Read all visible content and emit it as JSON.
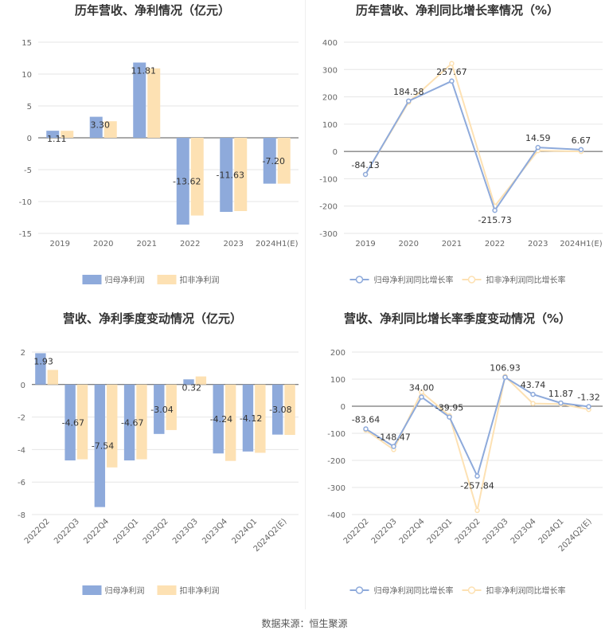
{
  "source_text": "数据来源：恒生聚源",
  "colors": {
    "series1": "#8eaadb",
    "series2": "#fde1b3",
    "line1": "#8eaadb",
    "line2": "#fde1b3"
  },
  "chart_data": [
    {
      "id": "c1",
      "type": "bar",
      "title": "历年营收、净利情况（亿元）",
      "categories": [
        "2019",
        "2020",
        "2021",
        "2022",
        "2023",
        "2024H1(E)"
      ],
      "series": [
        {
          "name": "归母净利润",
          "values": [
            1.11,
            3.3,
            11.81,
            -13.62,
            -11.63,
            -7.2
          ]
        },
        {
          "name": "扣非净利润",
          "values": [
            1.1,
            2.6,
            10.9,
            -12.2,
            -11.5,
            -7.2
          ]
        }
      ],
      "data_labels": [
        "1.11",
        "3.30",
        "11.81",
        "-13.62",
        "-11.63",
        "-7.20"
      ],
      "yticks": [
        15,
        10,
        5,
        0,
        -5,
        -10,
        -15
      ],
      "ylim": [
        -15,
        15
      ],
      "legend": "bottom"
    },
    {
      "id": "c2",
      "type": "line",
      "title": "历年营收、净利同比增长率情况（%）",
      "categories": [
        "2019",
        "2020",
        "2021",
        "2022",
        "2023",
        "2024H1(E)"
      ],
      "series": [
        {
          "name": "归母净利润同比增长率",
          "values": [
            -84.13,
            184.58,
            257.67,
            -215.73,
            14.59,
            6.67
          ]
        },
        {
          "name": "扣非净利润同比增长率",
          "values": [
            -84.0,
            180.0,
            322.0,
            -200.0,
            3.0,
            0.0
          ]
        }
      ],
      "data_labels": [
        "-84.13",
        "184.58",
        "257.67",
        "-215.73",
        "14.59",
        "6.67"
      ],
      "yticks": [
        400,
        300,
        200,
        100,
        0,
        -100,
        -200,
        -300
      ],
      "ylim": [
        -300,
        400
      ],
      "legend": "bottom"
    },
    {
      "id": "c3",
      "type": "bar",
      "title": "营收、净利季度变动情况（亿元）",
      "categories": [
        "2022Q2",
        "2022Q3",
        "2022Q4",
        "2023Q1",
        "2023Q2",
        "2023Q3",
        "2023Q4",
        "2024Q1",
        "2024Q2(E)"
      ],
      "series": [
        {
          "name": "归母净利润",
          "values": [
            1.93,
            -4.67,
            -7.54,
            -4.67,
            -3.04,
            0.32,
            -4.24,
            -4.12,
            -3.08
          ]
        },
        {
          "name": "扣非净利润",
          "values": [
            0.9,
            -4.6,
            -5.1,
            -4.6,
            -2.8,
            0.5,
            -4.7,
            -4.2,
            -3.1
          ]
        }
      ],
      "data_labels": [
        "1.93",
        "-4.67",
        "-7.54",
        "-4.67",
        "-3.04",
        "0.32",
        "-4.24",
        "-4.12",
        "-3.08"
      ],
      "yticks": [
        2,
        0,
        -2,
        -4,
        -6,
        -8
      ],
      "ylim": [
        -8,
        2
      ],
      "legend": "bottom"
    },
    {
      "id": "c4",
      "type": "line",
      "title": "营收、净利同比增长率季度变动情况（%）",
      "categories": [
        "2022Q2",
        "2022Q3",
        "2022Q4",
        "2023Q1",
        "2023Q2",
        "2023Q3",
        "2023Q4",
        "2024Q1",
        "2024Q2(E)"
      ],
      "series": [
        {
          "name": "归母净利润同比增长率",
          "values": [
            -83.64,
            -148.47,
            34.0,
            -39.95,
            -257.84,
            106.93,
            43.74,
            11.87,
            -1.32
          ]
        },
        {
          "name": "扣非净利润同比增长率",
          "values": [
            -88,
            -160,
            52,
            -35,
            -385,
            110,
            10,
            8,
            -12
          ]
        }
      ],
      "data_labels": [
        "-83.64",
        "-148.47",
        "34.00",
        "-39.95",
        "-257.84",
        "106.93",
        "43.74",
        "11.87",
        "-1.32"
      ],
      "yticks": [
        200,
        100,
        0,
        -100,
        -200,
        -300,
        -400
      ],
      "ylim": [
        -400,
        200
      ],
      "legend": "bottom"
    }
  ]
}
